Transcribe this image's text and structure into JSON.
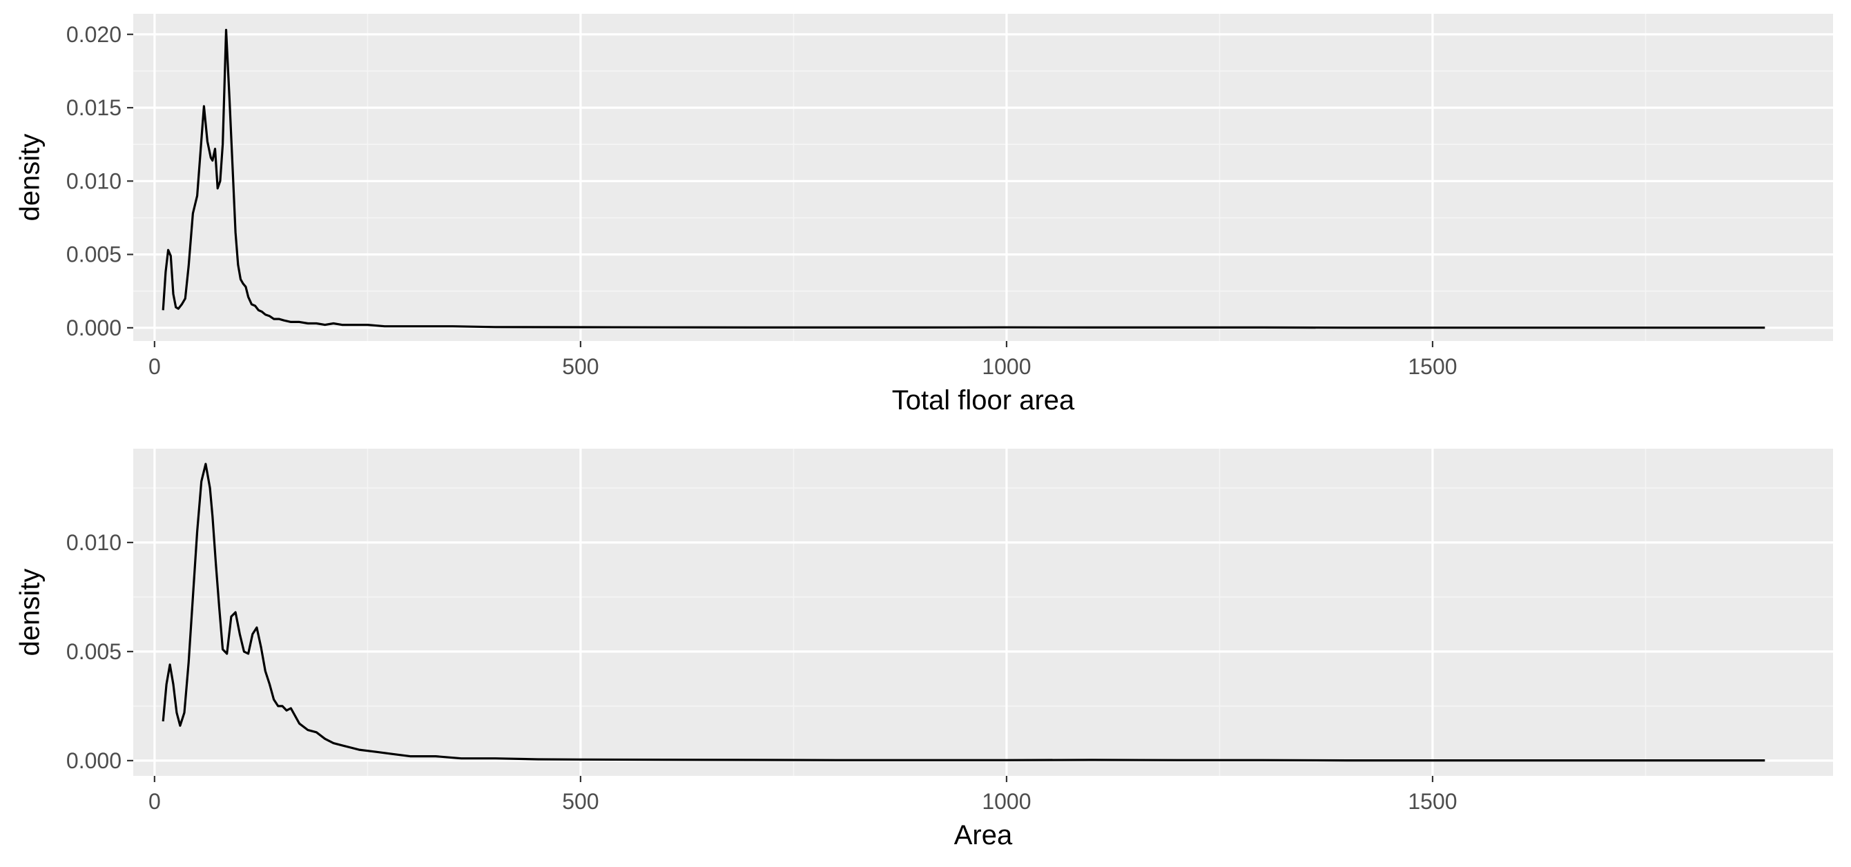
{
  "chart_data": [
    {
      "type": "line",
      "xlabel": "Total floor area",
      "ylabel": "density",
      "xlim": [
        -25,
        1970
      ],
      "ylim": [
        -0.0009,
        0.0214
      ],
      "xticks": [
        0,
        500,
        1000,
        1500
      ],
      "xtick_labels": [
        "0",
        "500",
        "1000",
        "1500"
      ],
      "yticks": [
        0,
        0.005,
        0.01,
        0.015,
        0.02
      ],
      "ytick_labels": [
        "0.000",
        "0.005",
        "0.010",
        "0.015",
        "0.020"
      ],
      "grid": true,
      "series": [
        {
          "x": [
            10,
            13,
            16,
            19,
            22,
            25,
            28,
            32,
            36,
            40,
            45,
            50,
            55,
            58,
            62,
            66,
            68,
            71,
            74,
            77,
            80,
            84,
            88,
            92,
            95,
            98,
            101,
            104,
            107,
            110,
            114,
            118,
            122,
            126,
            130,
            135,
            140,
            146,
            152,
            160,
            170,
            180,
            190,
            200,
            210,
            220,
            235,
            250,
            270,
            300,
            350,
            400,
            500,
            600,
            700,
            800,
            900,
            1000,
            1100,
            1200,
            1300,
            1400,
            1500,
            1600,
            1700,
            1800,
            1890
          ],
          "y": [
            0.0012,
            0.0038,
            0.0053,
            0.0049,
            0.0023,
            0.0014,
            0.0013,
            0.0016,
            0.002,
            0.0042,
            0.0078,
            0.009,
            0.0128,
            0.0151,
            0.0127,
            0.0116,
            0.0114,
            0.0122,
            0.0095,
            0.01,
            0.0125,
            0.0203,
            0.0155,
            0.0104,
            0.0065,
            0.0043,
            0.0033,
            0.003,
            0.0028,
            0.0021,
            0.0016,
            0.0015,
            0.0012,
            0.0011,
            0.0009,
            0.0008,
            0.0006,
            0.0006,
            0.0005,
            0.0004,
            0.0004,
            0.0003,
            0.0003,
            0.0002,
            0.0003,
            0.0002,
            0.0002,
            0.0002,
            0.0001,
            0.0001,
            0.0001,
            5e-05,
            4e-05,
            3e-05,
            2e-05,
            2e-05,
            2e-05,
            3e-05,
            2e-05,
            2e-05,
            2e-05,
            1e-05,
            1e-05,
            1e-05,
            1e-05,
            1e-05,
            1e-05
          ]
        }
      ]
    },
    {
      "type": "line",
      "xlabel": "Area",
      "ylabel": "density",
      "xlim": [
        -25,
        1970
      ],
      "ylim": [
        -0.0007,
        0.0143
      ],
      "xticks": [
        0,
        500,
        1000,
        1500
      ],
      "xtick_labels": [
        "0",
        "500",
        "1000",
        "1500"
      ],
      "yticks": [
        0,
        0.005,
        0.01
      ],
      "ytick_labels": [
        "0.000",
        "0.005",
        "0.010"
      ],
      "grid": true,
      "series": [
        {
          "x": [
            10,
            14,
            18,
            22,
            26,
            30,
            35,
            40,
            45,
            50,
            55,
            60,
            65,
            68,
            72,
            76,
            80,
            85,
            90,
            95,
            100,
            105,
            110,
            115,
            120,
            125,
            130,
            135,
            140,
            145,
            150,
            155,
            160,
            170,
            180,
            190,
            200,
            210,
            220,
            240,
            260,
            280,
            300,
            330,
            360,
            400,
            450,
            500,
            600,
            700,
            800,
            900,
            1000,
            1100,
            1200,
            1300,
            1400,
            1500,
            1600,
            1700,
            1800,
            1890
          ],
          "y": [
            0.0018,
            0.0035,
            0.0044,
            0.0035,
            0.0022,
            0.0016,
            0.0022,
            0.0045,
            0.0075,
            0.0105,
            0.0128,
            0.0136,
            0.0125,
            0.0112,
            0.009,
            0.007,
            0.0051,
            0.0049,
            0.0066,
            0.0068,
            0.0058,
            0.005,
            0.0049,
            0.0058,
            0.0061,
            0.0052,
            0.0041,
            0.0035,
            0.0028,
            0.0025,
            0.0025,
            0.0023,
            0.0024,
            0.0017,
            0.0014,
            0.0013,
            0.001,
            0.0008,
            0.0007,
            0.0005,
            0.0004,
            0.0003,
            0.0002,
            0.0002,
            0.0001,
            0.0001,
            6e-05,
            5e-05,
            4e-05,
            3e-05,
            2e-05,
            2e-05,
            2e-05,
            3e-05,
            2e-05,
            2e-05,
            1e-05,
            1e-05,
            1e-05,
            1e-05,
            1e-05,
            1e-05
          ]
        }
      ]
    }
  ],
  "colors": {
    "panel_background": "#ebebeb",
    "grid_major": "#ffffff",
    "grid_minor": "#f5f5f5",
    "line": "#000000",
    "axis_text": "#4d4d4d",
    "title_text": "#000000"
  }
}
